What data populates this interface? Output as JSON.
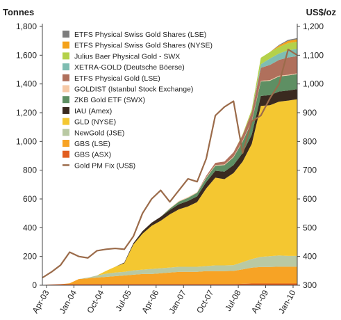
{
  "chart_data": {
    "type": "area",
    "title": "",
    "ylabel_left": "Tonnes",
    "ylabel_right": "US$/oz",
    "ylim_left": [
      0,
      1800
    ],
    "ylim_right": [
      300,
      1200
    ],
    "yticks_left": [
      "0",
      "200",
      "400",
      "600",
      "800",
      "1,000",
      "1,200",
      "1,400",
      "1,600",
      "1,800"
    ],
    "yticks_right": [
      "300",
      "400",
      "500",
      "600",
      "700",
      "800",
      "900",
      "1,000",
      "1,100",
      "1,200"
    ],
    "x_ticks": [
      "Apr-03",
      "Jan-04",
      "Oct-04",
      "Jul-05",
      "Apr-06",
      "Jan-07",
      "Oct-07",
      "Jul-08",
      "Apr-09",
      "Jan-10"
    ],
    "x": [
      "Apr-03",
      "Jul-03",
      "Oct-03",
      "Jan-04",
      "Apr-04",
      "Jul-04",
      "Oct-04",
      "Jan-05",
      "Apr-05",
      "Jul-05",
      "Oct-05",
      "Jan-06",
      "Apr-06",
      "Jul-06",
      "Oct-06",
      "Jan-07",
      "Apr-07",
      "Jul-07",
      "Oct-07",
      "Jan-08",
      "Apr-08",
      "Jul-08",
      "Oct-08",
      "Jan-09",
      "Apr-09",
      "Jul-09",
      "Oct-09",
      "Jan-10",
      "Mar-10"
    ],
    "legend_position": "top-left",
    "stack_order_bottom_to_top": [
      "GBS (ASX)",
      "GBS (LSE)",
      "NewGold (JSE)",
      "GLD (NYSE)",
      "IAU (Amex)",
      "ZKB Gold ETF (SWX)",
      "GOLDIST (Istanbul Stock Exchange)",
      "ETFS Physical Gold (LSE)",
      "XETRA-GOLD (Deutsche Böerse)",
      "Julius Baer Physical Gold - SWX",
      "ETFS Physical Swiss Gold Shares (NYSE)",
      "ETFS Physical Swiss Gold Shares (LSE)"
    ],
    "series": [
      {
        "name": "ETFS Physical Swiss Gold Shares (LSE)",
        "color": "#7d7d7d",
        "axis": "left",
        "values": [
          0,
          0,
          0,
          0,
          0,
          0,
          0,
          0,
          0,
          0,
          0,
          0,
          0,
          0,
          0,
          0,
          0,
          0,
          0,
          0,
          0,
          0,
          0,
          0,
          0,
          0,
          5,
          8,
          8
        ]
      },
      {
        "name": "ETFS Physical Swiss Gold Shares (NYSE)",
        "color": "#f4a21a",
        "axis": "left",
        "values": [
          0,
          0,
          0,
          0,
          0,
          0,
          0,
          0,
          0,
          0,
          0,
          0,
          0,
          0,
          0,
          0,
          0,
          0,
          0,
          0,
          0,
          0,
          0,
          0,
          0,
          0,
          10,
          15,
          17
        ]
      },
      {
        "name": "Julius Baer Physical Gold - SWX",
        "color": "#b4d14a",
        "axis": "left",
        "values": [
          0,
          0,
          0,
          0,
          0,
          0,
          0,
          0,
          0,
          0,
          0,
          0,
          0,
          0,
          0,
          0,
          0,
          0,
          0,
          0,
          0,
          0,
          5,
          20,
          45,
          45,
          45,
          50,
          50
        ]
      },
      {
        "name": "XETRA-GOLD (Deutsche Böerse)",
        "color": "#7fbdb2",
        "axis": "left",
        "values": [
          0,
          0,
          0,
          0,
          0,
          0,
          0,
          0,
          0,
          0,
          0,
          0,
          0,
          0,
          0,
          0,
          0,
          0,
          0,
          0,
          0,
          0,
          0,
          0,
          25,
          45,
          45,
          50,
          50
        ]
      },
      {
        "name": "ETFS Physical Gold (LSE)",
        "color": "#b0705c",
        "axis": "left",
        "values": [
          0,
          0,
          0,
          0,
          0,
          0,
          0,
          0,
          0,
          0,
          0,
          0,
          0,
          0,
          0,
          0,
          0,
          0,
          10,
          15,
          20,
          30,
          40,
          60,
          90,
          105,
          110,
          120,
          120
        ]
      },
      {
        "name": "GOLDIST (Istanbul Stock Exchange)",
        "color": "#f6c9a6",
        "axis": "left",
        "values": [
          0,
          0,
          0,
          0,
          0,
          0,
          0,
          0,
          0,
          0,
          0,
          0,
          0,
          0,
          3,
          5,
          5,
          5,
          5,
          5,
          5,
          5,
          5,
          5,
          5,
          5,
          5,
          5,
          5
        ]
      },
      {
        "name": "ZKB Gold ETF (SWX)",
        "color": "#5e8f63",
        "axis": "left",
        "values": [
          0,
          0,
          0,
          0,
          0,
          0,
          0,
          0,
          0,
          0,
          0,
          0,
          0,
          0,
          10,
          18,
          22,
          25,
          28,
          35,
          45,
          55,
          80,
          90,
          100,
          100,
          105,
          105,
          105
        ]
      },
      {
        "name": "IAU (Amex)",
        "color": "#3a2a20",
        "axis": "left",
        "values": [
          0,
          0,
          0,
          0,
          0,
          0,
          0,
          0,
          0,
          5,
          10,
          18,
          22,
          28,
          30,
          35,
          38,
          40,
          45,
          48,
          52,
          55,
          60,
          65,
          70,
          70,
          70,
          70,
          70
        ]
      },
      {
        "name": "GLD (NYSE)",
        "color": "#f4c731",
        "axis": "left",
        "values": [
          0,
          0,
          0,
          0,
          0,
          0,
          0,
          20,
          40,
          60,
          180,
          250,
          300,
          330,
          370,
          400,
          420,
          450,
          540,
          610,
          600,
          640,
          700,
          800,
          1050,
          1050,
          1070,
          1080,
          1090
        ]
      },
      {
        "name": "NewGold (JSE)",
        "color": "#b9c9a3",
        "axis": "left",
        "values": [
          0,
          0,
          0,
          0,
          0,
          5,
          15,
          22,
          25,
          25,
          30,
          30,
          35,
          35,
          35,
          35,
          35,
          35,
          35,
          40,
          40,
          40,
          50,
          60,
          70,
          75,
          78,
          75,
          75
        ]
      },
      {
        "name": "GBS (LSE)",
        "color": "#f7a325",
        "axis": "left",
        "values": [
          0,
          0,
          0,
          5,
          35,
          40,
          45,
          50,
          55,
          60,
          65,
          70,
          70,
          75,
          80,
          85,
          85,
          85,
          90,
          90,
          90,
          92,
          100,
          110,
          115,
          115,
          117,
          117,
          117
        ]
      },
      {
        "name": "GBS (ASX)",
        "color": "#e15d1f",
        "axis": "left",
        "values": [
          2,
          5,
          7,
          8,
          8,
          8,
          8,
          8,
          8,
          8,
          8,
          8,
          8,
          8,
          8,
          8,
          8,
          8,
          8,
          8,
          8,
          8,
          10,
          12,
          12,
          12,
          12,
          12,
          12
        ]
      },
      {
        "name": "Gold PM Fix (US$)",
        "color": "#9b6b4a",
        "axis": "right",
        "values": [
          326,
          346,
          370,
          415,
          400,
          395,
          420,
          425,
          428,
          425,
          470,
          550,
          600,
          630,
          590,
          630,
          670,
          660,
          740,
          890,
          920,
          940,
          760,
          870,
          890,
          950,
          1000,
          1120,
          1100
        ]
      }
    ]
  }
}
